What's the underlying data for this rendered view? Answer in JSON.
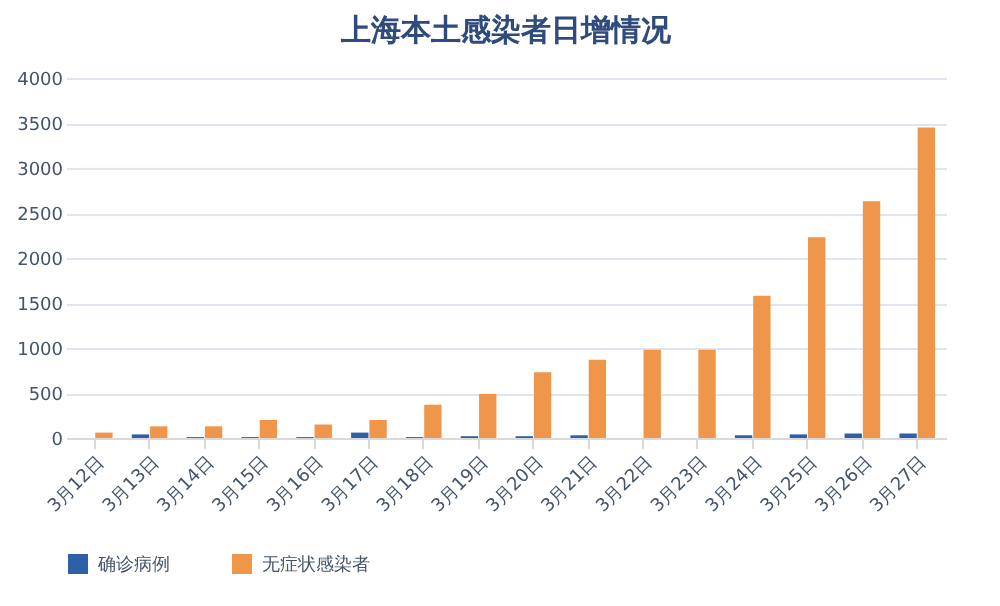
{
  "chart_data": {
    "type": "bar",
    "title": "上海本土感染者日增情况",
    "categories": [
      "3月12日",
      "3月13日",
      "3月14日",
      "3月15日",
      "3月16日",
      "3月17日",
      "3月18日",
      "3月19日",
      "3月20日",
      "3月21日",
      "3月22日",
      "3月23日",
      "3月24日",
      "3月25日",
      "3月26日",
      "3月27日"
    ],
    "series": [
      {
        "name": "确诊病例",
        "color": "#2f5fa8",
        "values": [
          0,
          40,
          10,
          10,
          10,
          60,
          10,
          20,
          20,
          30,
          0,
          0,
          30,
          40,
          50,
          50
        ]
      },
      {
        "name": "无症状感染者",
        "color": "#f0964a",
        "values": [
          60,
          130,
          130,
          200,
          150,
          200,
          370,
          490,
          730,
          870,
          980,
          980,
          1580,
          2230,
          2630,
          3450
        ]
      }
    ],
    "ylim": [
      0,
      4000
    ],
    "yticks": [
      0,
      500,
      1000,
      1500,
      2000,
      2500,
      3000,
      3500,
      4000
    ],
    "grid": "y",
    "legend": "bottom"
  }
}
